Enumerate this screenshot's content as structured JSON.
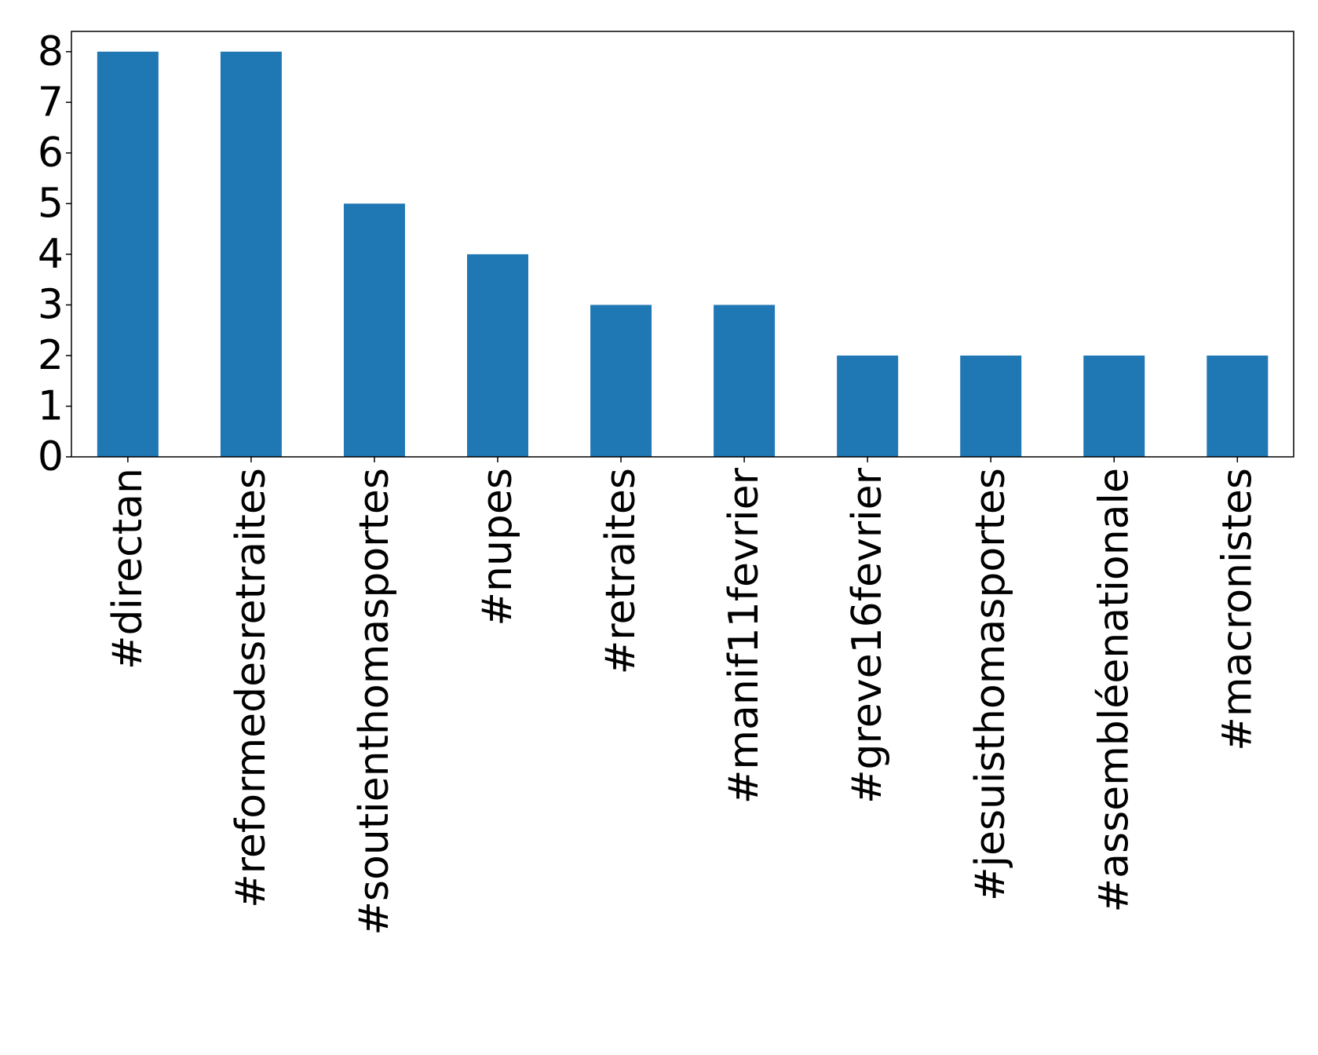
{
  "chart_data": {
    "type": "bar",
    "categories": [
      "#directan",
      "#reformedesretraites",
      "#soutienthomasportes",
      "#nupes",
      "#retraites",
      "#manif11fevrier",
      "#greve16fevrier",
      "#jesuisthomasportes",
      "#assembléenationale",
      "#macronistes"
    ],
    "values": [
      8,
      8,
      5,
      4,
      3,
      3,
      2,
      2,
      2,
      2
    ],
    "ylim": [
      0,
      8.4
    ],
    "yticks": [
      0,
      1,
      2,
      3,
      4,
      5,
      6,
      7,
      8
    ],
    "title": "",
    "xlabel": "",
    "ylabel": "",
    "grid": false,
    "legend": "none",
    "colors": {
      "bar": "#1f77b4",
      "axis": "#000000",
      "background": "#ffffff"
    }
  }
}
